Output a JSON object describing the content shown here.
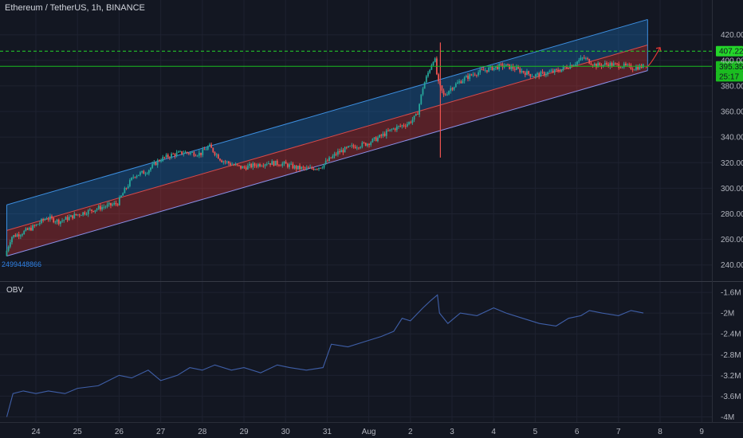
{
  "header": {
    "title": "Ethereum / TetherUS, 1h, BINANCE",
    "indicator_label": "OBV",
    "volume_label": "2499448866"
  },
  "colors": {
    "background": "#131722",
    "grid": "#1e2230",
    "up": "#26a69a",
    "down": "#ef5350",
    "channel_upper": "#1e88e5",
    "channel_lower": "#e53935",
    "obv_line": "#3f5fa8",
    "axis_text": "#b2b5be",
    "green_badge": "#1bbc20",
    "lime_badge": "#24d62a"
  },
  "price_badges": [
    {
      "label": "407.22",
      "value": 407.22,
      "style": "dashed",
      "color": "#24d62a"
    },
    {
      "label": "395.35",
      "value": 395.35,
      "style": "solid",
      "color": "#1bbc20"
    },
    {
      "label": "25:17",
      "value": 387.5,
      "style": "none",
      "color": "#1bbc20"
    }
  ],
  "chart_data": [
    {
      "type": "candlestick",
      "title": "Ethereum / TetherUS, 1h, BINANCE",
      "ylim": [
        228,
        436
      ],
      "y_ticks": [
        240,
        260,
        280,
        300,
        320,
        340,
        360,
        380,
        400,
        420
      ],
      "y_tick_labels": [
        "240.00",
        "260.00",
        "280.00",
        "300.00",
        "320.00",
        "340.00",
        "360.00",
        "380.00",
        "400.00",
        "420.00"
      ],
      "x_range": [
        23.3,
        9.4
      ],
      "x_ticks": [
        {
          "label": "24",
          "day": 24
        },
        {
          "label": "25",
          "day": 25
        },
        {
          "label": "26",
          "day": 26
        },
        {
          "label": "27",
          "day": 27
        },
        {
          "label": "28",
          "day": 28
        },
        {
          "label": "29",
          "day": 29
        },
        {
          "label": "30",
          "day": 30
        },
        {
          "label": "31",
          "day": 31
        },
        {
          "label": "Aug",
          "day": 32
        },
        {
          "label": "2",
          "day": 33
        },
        {
          "label": "3",
          "day": 34
        },
        {
          "label": "4",
          "day": 35
        },
        {
          "label": "5",
          "day": 36
        },
        {
          "label": "6",
          "day": 37
        },
        {
          "label": "7",
          "day": 38
        },
        {
          "label": "8",
          "day": 39
        },
        {
          "label": "9",
          "day": 40
        }
      ],
      "price_path": [
        [
          23.3,
          247
        ],
        [
          23.45,
          262
        ],
        [
          23.7,
          265
        ],
        [
          24.0,
          270
        ],
        [
          24.3,
          277
        ],
        [
          24.6,
          274
        ],
        [
          25.0,
          279
        ],
        [
          25.3,
          282
        ],
        [
          25.6,
          285
        ],
        [
          26.0,
          288
        ],
        [
          26.15,
          297
        ],
        [
          26.4,
          310
        ],
        [
          26.7,
          313
        ],
        [
          27.0,
          322
        ],
        [
          27.3,
          326
        ],
        [
          27.6,
          328
        ],
        [
          28.0,
          327
        ],
        [
          28.2,
          333
        ],
        [
          28.5,
          322
        ],
        [
          28.8,
          318
        ],
        [
          29.0,
          316
        ],
        [
          29.3,
          318
        ],
        [
          29.6,
          320
        ],
        [
          30.0,
          319
        ],
        [
          30.3,
          316
        ],
        [
          30.6,
          315
        ],
        [
          30.9,
          317
        ],
        [
          31.0,
          320
        ],
        [
          31.3,
          328
        ],
        [
          31.6,
          332
        ],
        [
          32.0,
          335
        ],
        [
          32.3,
          340
        ],
        [
          32.6,
          346
        ],
        [
          33.0,
          351
        ],
        [
          33.2,
          357
        ],
        [
          33.35,
          380
        ],
        [
          33.5,
          393
        ],
        [
          33.62,
          403
        ],
        [
          33.7,
          383
        ],
        [
          33.85,
          372
        ],
        [
          34.0,
          378
        ],
        [
          34.3,
          385
        ],
        [
          34.6,
          390
        ],
        [
          35.0,
          394
        ],
        [
          35.3,
          396
        ],
        [
          35.6,
          393
        ],
        [
          36.0,
          388
        ],
        [
          36.3,
          390
        ],
        [
          36.6,
          392
        ],
        [
          37.0,
          398
        ],
        [
          37.2,
          402
        ],
        [
          37.5,
          396
        ],
        [
          37.8,
          397
        ],
        [
          38.1,
          396
        ],
        [
          38.4,
          394
        ],
        [
          38.6,
          395.35
        ]
      ],
      "channel": {
        "upper_band": {
          "start": [
            23.3,
            287
          ],
          "end": [
            38.7,
            432
          ]
        },
        "mid_line": {
          "start": [
            23.3,
            267
          ],
          "end": [
            38.7,
            412
          ]
        },
        "lower_band": {
          "start": [
            23.3,
            247
          ],
          "end": [
            38.7,
            392
          ]
        }
      },
      "spike": {
        "day": 33.72,
        "high": 414,
        "low": 324
      },
      "projection_arrow": {
        "from": [
          38.65,
          394
        ],
        "to": [
          39.0,
          410
        ]
      }
    },
    {
      "type": "line",
      "title": "OBV",
      "ylim": [
        -4.1,
        -1.43
      ],
      "y_ticks": [
        -4.0,
        -3.6,
        -3.2,
        -2.8,
        -2.4,
        -2.0,
        -1.6
      ],
      "y_tick_labels": [
        "-4M",
        "-3.6M",
        "-3.2M",
        "-2.8M",
        "-2.4M",
        "-2M",
        "-1.6M"
      ],
      "series": [
        {
          "values": [
            [
              23.3,
              -4.0
            ],
            [
              23.45,
              -3.55
            ],
            [
              23.7,
              -3.5
            ],
            [
              24.0,
              -3.55
            ],
            [
              24.3,
              -3.5
            ],
            [
              24.7,
              -3.55
            ],
            [
              25.0,
              -3.45
            ],
            [
              25.5,
              -3.4
            ],
            [
              26.0,
              -3.2
            ],
            [
              26.3,
              -3.25
            ],
            [
              26.7,
              -3.1
            ],
            [
              27.0,
              -3.3
            ],
            [
              27.4,
              -3.2
            ],
            [
              27.7,
              -3.05
            ],
            [
              28.0,
              -3.1
            ],
            [
              28.3,
              -3.0
            ],
            [
              28.7,
              -3.1
            ],
            [
              29.0,
              -3.05
            ],
            [
              29.4,
              -3.15
            ],
            [
              29.8,
              -3.0
            ],
            [
              30.1,
              -3.05
            ],
            [
              30.5,
              -3.1
            ],
            [
              30.9,
              -3.05
            ],
            [
              31.1,
              -2.6
            ],
            [
              31.5,
              -2.65
            ],
            [
              31.9,
              -2.55
            ],
            [
              32.3,
              -2.45
            ],
            [
              32.6,
              -2.35
            ],
            [
              32.8,
              -2.1
            ],
            [
              33.0,
              -2.15
            ],
            [
              33.3,
              -1.9
            ],
            [
              33.5,
              -1.75
            ],
            [
              33.65,
              -1.65
            ],
            [
              33.7,
              -2.0
            ],
            [
              33.9,
              -2.2
            ],
            [
              34.2,
              -2.0
            ],
            [
              34.6,
              -2.05
            ],
            [
              35.0,
              -1.9
            ],
            [
              35.3,
              -2.0
            ],
            [
              35.7,
              -2.1
            ],
            [
              36.1,
              -2.2
            ],
            [
              36.5,
              -2.25
            ],
            [
              36.8,
              -2.1
            ],
            [
              37.1,
              -2.05
            ],
            [
              37.3,
              -1.95
            ],
            [
              37.6,
              -2.0
            ],
            [
              38.0,
              -2.05
            ],
            [
              38.3,
              -1.95
            ],
            [
              38.6,
              -2.0
            ]
          ]
        }
      ]
    }
  ]
}
